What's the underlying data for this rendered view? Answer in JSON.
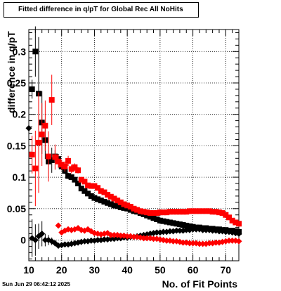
{
  "chart_data": {
    "type": "scatter",
    "title": "Fitted difference in q/pT for Global Rec All NoHits",
    "xlabel": "No. of Fit Points",
    "ylabel": "difference in q/pT",
    "xlim": [
      10,
      74
    ],
    "ylim": [
      -0.033,
      0.335
    ],
    "x_ticks": [
      10,
      20,
      30,
      40,
      50,
      60,
      70
    ],
    "y_ticks": [
      0,
      0.05,
      0.1,
      0.15,
      0.2,
      0.25,
      0.3
    ],
    "y_tick_labels": [
      "0",
      "0.05",
      "0.1",
      "0.15",
      "0.2",
      "0.25",
      "0.3"
    ],
    "grid": true,
    "series": [
      {
        "marker": "square",
        "color": "#000000",
        "x": [
          11,
          12,
          13,
          14,
          15,
          16,
          17,
          18,
          19,
          20,
          21,
          22,
          23,
          24,
          25,
          26,
          27,
          28,
          29,
          30,
          31,
          32,
          33,
          34,
          35,
          36,
          37,
          38,
          39,
          40,
          41,
          42,
          43,
          44,
          45,
          46,
          47,
          48,
          49,
          50,
          51,
          52,
          53,
          54,
          55,
          56,
          57,
          58,
          59,
          60,
          61,
          62,
          63,
          64,
          65,
          66,
          67,
          68,
          69,
          70,
          71,
          72,
          73,
          74
        ],
        "y": [
          0.24,
          0.3,
          0.233,
          0.187,
          0.159,
          0.125,
          0.127,
          0.133,
          0.129,
          0.117,
          0.11,
          0.102,
          0.1,
          0.096,
          0.09,
          0.082,
          0.078,
          0.074,
          0.07,
          0.067,
          0.065,
          0.063,
          0.061,
          0.059,
          0.057,
          0.055,
          0.054,
          0.052,
          0.051,
          0.05,
          0.048,
          0.046,
          0.045,
          0.043,
          0.041,
          0.039,
          0.037,
          0.035,
          0.033,
          0.031,
          0.03,
          0.029,
          0.028,
          0.027,
          0.026,
          0.025,
          0.024,
          0.023,
          0.022,
          0.021,
          0.02,
          0.02,
          0.019,
          0.019,
          0.018,
          0.018,
          0.017,
          0.017,
          0.016,
          0.016,
          0.015,
          0.015,
          0.014,
          0.013
        ],
        "err": [
          0.015,
          0.04,
          0.09,
          0.05,
          0.03,
          0.025,
          0.02,
          0.01,
          0.008,
          0.006,
          0.005,
          0.005,
          0.004,
          0.004,
          0.003,
          0.003,
          0.003,
          0.003,
          0.002,
          0.002,
          0.002,
          0.002,
          0.002,
          0.002,
          0.002,
          0.002,
          0.002,
          0.002,
          0.002,
          0.002,
          0.002,
          0.002,
          0.002,
          0.002,
          0.002,
          0.002,
          0.002,
          0.002,
          0.002,
          0.002,
          0.002,
          0.002,
          0.002,
          0.002,
          0.002,
          0.002,
          0.002,
          0.002,
          0.002,
          0.002,
          0.002,
          0.002,
          0.002,
          0.002,
          0.002,
          0.002,
          0.002,
          0.002,
          0.002,
          0.002,
          0.002,
          0.002,
          0.002,
          0.002
        ]
      },
      {
        "marker": "square",
        "color": "#ff0000",
        "x": [
          11,
          12,
          13,
          14,
          15,
          16,
          17,
          18,
          19,
          20,
          21,
          22,
          23,
          24,
          25,
          26,
          27,
          28,
          29,
          30,
          31,
          32,
          33,
          34,
          35,
          36,
          37,
          38,
          39,
          40,
          41,
          42,
          43,
          44,
          45,
          46,
          47,
          48,
          49,
          50,
          51,
          52,
          53,
          54,
          55,
          56,
          57,
          58,
          59,
          60,
          61,
          62,
          63,
          64,
          65,
          66,
          67,
          68,
          69,
          70,
          71,
          72,
          73,
          74
        ],
        "y": [
          0.136,
          0.114,
          0.155,
          0.168,
          0.182,
          0.133,
          0.223,
          0.132,
          0.125,
          0.12,
          0.117,
          0.126,
          0.113,
          0.116,
          0.111,
          0.096,
          0.093,
          0.087,
          0.086,
          0.086,
          0.083,
          0.078,
          0.076,
          0.072,
          0.069,
          0.066,
          0.063,
          0.06,
          0.057,
          0.055,
          0.053,
          0.05,
          0.048,
          0.046,
          0.045,
          0.044,
          0.043,
          0.043,
          0.043,
          0.044,
          0.044,
          0.044,
          0.045,
          0.045,
          0.045,
          0.045,
          0.045,
          0.045,
          0.046,
          0.046,
          0.046,
          0.046,
          0.046,
          0.046,
          0.046,
          0.045,
          0.045,
          0.044,
          0.043,
          0.04,
          0.036,
          0.031,
          0.028,
          0.026
        ],
        "err": [
          0.03,
          0.06,
          0.08,
          0.05,
          0.04,
          0.04,
          0.04,
          0.02,
          0.01,
          0.008,
          0.008,
          0.008,
          0.007,
          0.006,
          0.005,
          0.004,
          0.004,
          0.003,
          0.003,
          0.003,
          0.003,
          0.003,
          0.003,
          0.002,
          0.002,
          0.002,
          0.002,
          0.002,
          0.002,
          0.002,
          0.002,
          0.002,
          0.002,
          0.002,
          0.002,
          0.002,
          0.002,
          0.002,
          0.002,
          0.002,
          0.002,
          0.002,
          0.002,
          0.002,
          0.002,
          0.002,
          0.002,
          0.002,
          0.002,
          0.002,
          0.002,
          0.002,
          0.002,
          0.002,
          0.002,
          0.002,
          0.002,
          0.002,
          0.002,
          0.002,
          0.002,
          0.002,
          0.002,
          0.002
        ]
      },
      {
        "marker": "diamond",
        "color": "#000000",
        "x": [
          10,
          11,
          12,
          13,
          14,
          15,
          16,
          17,
          18,
          19,
          20,
          21,
          22,
          23,
          24,
          25,
          26,
          27,
          28,
          29,
          30,
          31,
          32,
          33,
          34,
          35,
          36,
          37,
          38,
          39,
          40,
          41,
          42,
          43,
          44,
          45,
          46,
          47,
          48,
          49,
          50,
          51,
          52,
          53,
          54,
          55,
          56,
          57,
          58,
          59,
          60,
          61,
          62,
          63,
          64,
          65,
          66,
          67,
          68,
          69,
          70,
          71,
          72,
          73,
          74
        ],
        "y": [
          0.178,
          0.003,
          0.0,
          0.006,
          0.01,
          0.0,
          0.0,
          -0.002,
          -0.005,
          -0.009,
          -0.008,
          -0.007,
          -0.007,
          -0.006,
          -0.005,
          -0.004,
          -0.003,
          -0.002,
          -0.002,
          -0.001,
          -0.001,
          0.0,
          0.0,
          0.001,
          0.001,
          0.002,
          0.002,
          0.003,
          0.003,
          0.004,
          0.004,
          0.005,
          0.005,
          0.006,
          0.007,
          0.008,
          0.009,
          0.01,
          0.011,
          0.012,
          0.012,
          0.013,
          0.013,
          0.014,
          0.014,
          0.015,
          0.015,
          0.015,
          0.016,
          0.016,
          0.017,
          0.017,
          0.017,
          0.016,
          0.016,
          0.016,
          0.015,
          0.015,
          0.014,
          0.014,
          0.013,
          0.013,
          0.012,
          0.011,
          0.01
        ],
        "err": [
          0.02,
          0.03,
          0.025,
          0.02,
          0.02,
          0.01,
          0.008,
          0.006,
          0.005,
          0.004,
          0.003,
          0.003,
          0.003,
          0.002,
          0.002,
          0.002,
          0.002,
          0.002,
          0.002,
          0.002,
          0.002,
          0.002,
          0.002,
          0.002,
          0.002,
          0.002,
          0.002,
          0.002,
          0.002,
          0.002,
          0.002,
          0.002,
          0.002,
          0.002,
          0.002,
          0.002,
          0.002,
          0.002,
          0.002,
          0.002,
          0.002,
          0.002,
          0.002,
          0.002,
          0.002,
          0.002,
          0.002,
          0.002,
          0.002,
          0.002,
          0.002,
          0.002,
          0.002,
          0.002,
          0.002,
          0.002,
          0.002,
          0.002,
          0.002,
          0.002,
          0.002,
          0.002,
          0.002,
          0.002,
          0.002
        ]
      },
      {
        "marker": "diamond",
        "color": "#ff0000",
        "x": [
          19,
          20,
          21,
          22,
          23,
          24,
          25,
          26,
          27,
          28,
          29,
          30,
          31,
          32,
          33,
          34,
          35,
          36,
          37,
          38,
          39,
          40,
          41,
          42,
          43,
          44,
          45,
          46,
          47,
          48,
          49,
          50,
          51,
          52,
          53,
          54,
          55,
          56,
          57,
          58,
          59,
          60,
          61,
          62,
          63,
          64,
          65,
          66,
          67,
          68,
          69,
          70,
          71,
          72,
          73,
          74
        ],
        "y": [
          0.023,
          0.012,
          0.015,
          0.017,
          0.016,
          0.017,
          0.019,
          0.016,
          0.015,
          0.017,
          0.014,
          0.011,
          0.01,
          0.009,
          0.01,
          0.011,
          0.008,
          0.008,
          0.008,
          0.007,
          0.007,
          0.006,
          0.006,
          0.005,
          0.005,
          0.004,
          0.003,
          0.003,
          0.003,
          0.002,
          0.002,
          0.001,
          0.0,
          -0.001,
          -0.001,
          -0.002,
          -0.002,
          -0.003,
          -0.004,
          -0.004,
          -0.005,
          -0.005,
          -0.005,
          -0.006,
          -0.006,
          -0.006,
          -0.005,
          -0.005,
          -0.004,
          -0.004,
          -0.003,
          -0.002,
          -0.001,
          -0.001,
          -0.001,
          -0.002
        ],
        "err": [
          0.003,
          0.003,
          0.003,
          0.003,
          0.003,
          0.003,
          0.003,
          0.003,
          0.002,
          0.002,
          0.002,
          0.002,
          0.002,
          0.002,
          0.002,
          0.002,
          0.002,
          0.002,
          0.002,
          0.002,
          0.002,
          0.002,
          0.002,
          0.002,
          0.002,
          0.002,
          0.002,
          0.002,
          0.002,
          0.002,
          0.002,
          0.002,
          0.002,
          0.002,
          0.002,
          0.002,
          0.002,
          0.002,
          0.002,
          0.002,
          0.002,
          0.002,
          0.002,
          0.002,
          0.002,
          0.002,
          0.002,
          0.002,
          0.002,
          0.002,
          0.002,
          0.002,
          0.002,
          0.002,
          0.002,
          0.002
        ]
      }
    ]
  },
  "footer": {
    "timestamp": "Sun Jun 29 06:42:12 2025"
  }
}
